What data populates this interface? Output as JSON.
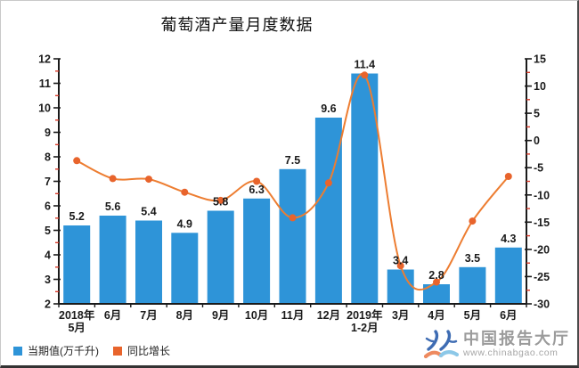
{
  "page": {
    "title": "葡萄酒产量月度数据"
  },
  "legend": {
    "items": [
      {
        "label": "当期值(万千升)",
        "color": "#2E94D8"
      },
      {
        "label": "同比增长",
        "color": "#E8642C"
      }
    ]
  },
  "watermark": {
    "brand": "中国报告大厅",
    "url": "www.chinabgao.com",
    "colors": {
      "mark": "#3E6CB3",
      "book_left": "#EE8A5F",
      "book_right": "#8CC8E8",
      "text": "#9B9B9B"
    }
  },
  "chart_data": {
    "type": "bar+line",
    "title": "葡萄酒产量月度数据",
    "categories": [
      "2018年\n5月",
      "6月",
      "7月",
      "8月",
      "9月",
      "10月",
      "11月",
      "12月",
      "2019年\n1-2月",
      "3月",
      "4月",
      "5月",
      "6月"
    ],
    "series": [
      {
        "name": "当期值(万千升)",
        "type": "bar",
        "axis": "left",
        "color": "#2E94D8",
        "values": [
          5.2,
          5.6,
          5.4,
          4.9,
          5.8,
          6.3,
          7.5,
          9.6,
          11.4,
          3.4,
          2.8,
          3.5,
          4.3
        ],
        "data_labels": [
          "5.2",
          "5.6",
          "5.4",
          "4.9",
          "5.8",
          "6.3",
          "7.5",
          "9.6",
          "11.4",
          "3.4",
          "2.8",
          "3.5",
          "4.3"
        ]
      },
      {
        "name": "同比增长",
        "type": "line",
        "axis": "right",
        "color": "#ED7D31",
        "marker_color": "#E8642C",
        "values": [
          -3.7,
          -7.0,
          -7.1,
          -9.5,
          -11.0,
          -7.5,
          -14.2,
          -7.8,
          12.0,
          -23.0,
          -26.0,
          -14.8,
          -6.6
        ]
      }
    ],
    "axes": {
      "left": {
        "min": 2,
        "max": 12,
        "step": 1,
        "minor_step": 0.5,
        "ticks": [
          12,
          11,
          10,
          9,
          8,
          7,
          6,
          5,
          4,
          3,
          2
        ]
      },
      "right": {
        "min": -30,
        "max": 15,
        "step": 5,
        "minor_step": 2.5,
        "ticks": [
          15,
          10,
          5,
          0,
          -5,
          -10,
          -15,
          -20,
          -25,
          -30
        ]
      }
    },
    "grid": false,
    "legend_position": "bottom-left",
    "colors": {
      "axis": "#1a1a1a",
      "minor_tick": "#D93B2B",
      "label": "#1a1a1a"
    }
  }
}
